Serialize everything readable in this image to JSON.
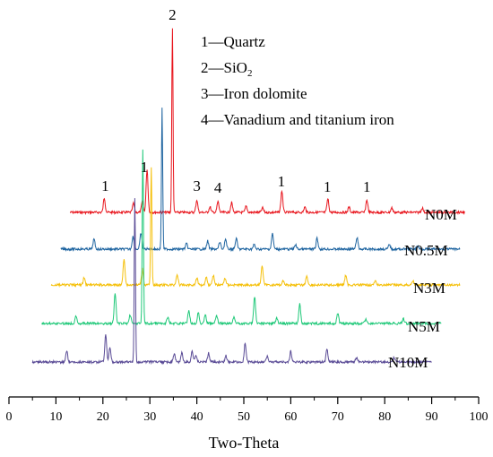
{
  "chart_data": {
    "type": "line",
    "xlabel": "Two-Theta",
    "xlim": [
      0,
      100
    ],
    "x_ticks": [
      0,
      10,
      20,
      30,
      40,
      50,
      60,
      70,
      80,
      90,
      100
    ],
    "legend": [
      "1—Quartz",
      "2—SiO2",
      "3—Iron dolomite",
      "4—Vanadium and titanium iron"
    ],
    "peak_labels": [
      {
        "text": "2",
        "x": 34.8
      },
      {
        "text": "1",
        "x": 20.5
      },
      {
        "text": "1",
        "x": 28.8
      },
      {
        "text": "3",
        "x": 40.0
      },
      {
        "text": "4",
        "x": 44.5
      },
      {
        "text": "1",
        "x": 58.0
      },
      {
        "text": "1",
        "x": 67.8
      },
      {
        "text": "1",
        "x": 76.2
      }
    ],
    "series": [
      {
        "name": "N0M",
        "color": "#e8141c",
        "x_range": [
          13,
          97
        ],
        "peaks": [
          [
            20.3,
            16
          ],
          [
            26.5,
            10
          ],
          [
            28.4,
            12
          ],
          [
            29.4,
            48
          ],
          [
            34.8,
            205
          ],
          [
            40.0,
            14
          ],
          [
            42.8,
            6
          ],
          [
            44.5,
            12
          ],
          [
            47.4,
            11
          ],
          [
            50.5,
            7
          ],
          [
            54.0,
            5
          ],
          [
            58.1,
            24
          ],
          [
            63.0,
            6
          ],
          [
            67.9,
            15
          ],
          [
            72.4,
            6
          ],
          [
            76.2,
            14
          ],
          [
            81.5,
            5
          ],
          [
            88.0,
            5
          ]
        ]
      },
      {
        "name": "N0.5M",
        "color": "#1e64a0",
        "x_range": [
          11,
          96
        ],
        "peaks": [
          [
            18.1,
            11
          ],
          [
            26.4,
            14
          ],
          [
            28.1,
            18
          ],
          [
            32.6,
            157
          ],
          [
            37.8,
            6
          ],
          [
            42.3,
            9
          ],
          [
            44.9,
            8
          ],
          [
            46.1,
            11
          ],
          [
            48.4,
            12
          ],
          [
            52.2,
            5
          ],
          [
            56.1,
            17
          ],
          [
            61.0,
            5
          ],
          [
            65.6,
            12
          ],
          [
            74.1,
            13
          ],
          [
            81.0,
            5
          ],
          [
            87.0,
            4
          ]
        ]
      },
      {
        "name": "N3M",
        "color": "#f5c00a",
        "x_range": [
          9,
          96
        ],
        "peaks": [
          [
            16.0,
            8
          ],
          [
            24.5,
            30
          ],
          [
            28.4,
            18
          ],
          [
            30.3,
            130
          ],
          [
            35.8,
            12
          ],
          [
            40.0,
            8
          ],
          [
            42.0,
            9
          ],
          [
            43.5,
            11
          ],
          [
            46.0,
            8
          ],
          [
            53.9,
            22
          ],
          [
            58.4,
            5
          ],
          [
            63.4,
            10
          ],
          [
            71.7,
            11
          ],
          [
            78.0,
            4
          ],
          [
            86.0,
            5
          ]
        ]
      },
      {
        "name": "N5M",
        "color": "#1ec878",
        "x_range": [
          7,
          92
        ],
        "peaks": [
          [
            14.3,
            9
          ],
          [
            22.6,
            34
          ],
          [
            25.8,
            10
          ],
          [
            28.5,
            195
          ],
          [
            33.8,
            7
          ],
          [
            38.3,
            15
          ],
          [
            40.3,
            12
          ],
          [
            41.8,
            10
          ],
          [
            44.2,
            9
          ],
          [
            47.9,
            8
          ],
          [
            52.3,
            30
          ],
          [
            57.0,
            6
          ],
          [
            61.9,
            22
          ],
          [
            70.0,
            12
          ],
          [
            76.0,
            5
          ],
          [
            84.0,
            5
          ]
        ]
      },
      {
        "name": "N10M",
        "color": "#5a4b96",
        "x_range": [
          5,
          90
        ],
        "peaks": [
          [
            12.3,
            12
          ],
          [
            20.6,
            30
          ],
          [
            21.5,
            16
          ],
          [
            26.8,
            183
          ],
          [
            35.2,
            9
          ],
          [
            36.8,
            10
          ],
          [
            39.0,
            12
          ],
          [
            39.8,
            8
          ],
          [
            42.5,
            10
          ],
          [
            46.2,
            7
          ],
          [
            50.3,
            21
          ],
          [
            55.0,
            6
          ],
          [
            60.0,
            12
          ],
          [
            67.7,
            14
          ],
          [
            74.0,
            5
          ],
          [
            82.0,
            5
          ]
        ]
      }
    ]
  }
}
